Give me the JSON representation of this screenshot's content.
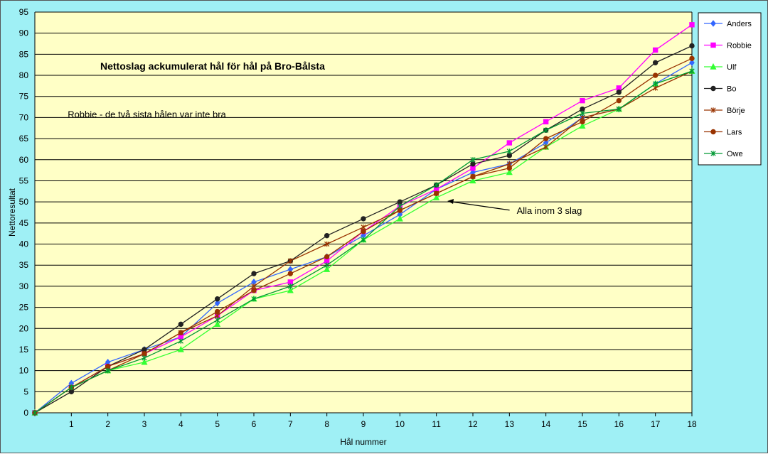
{
  "chart_data": {
    "type": "line",
    "title": "Nettoslag ackumulerat hål för hål på Bro-Bålsta",
    "xlabel": "Hål nummer",
    "ylabel": "Nettoresultat",
    "x": [
      0,
      1,
      2,
      3,
      4,
      5,
      6,
      7,
      8,
      9,
      10,
      11,
      12,
      13,
      14,
      15,
      16,
      17,
      18
    ],
    "xticks": [
      1,
      2,
      3,
      4,
      5,
      6,
      7,
      8,
      9,
      10,
      11,
      12,
      13,
      14,
      15,
      16,
      17,
      18
    ],
    "xlim": [
      0,
      18
    ],
    "ylim": [
      0,
      95
    ],
    "yticks": [
      0,
      5,
      10,
      15,
      20,
      25,
      30,
      35,
      40,
      45,
      50,
      55,
      60,
      65,
      70,
      75,
      80,
      85,
      90,
      95
    ],
    "grid": true,
    "legend_position": "right",
    "plot_background": "#ffffc6",
    "background": "#9ff0f5",
    "annotations": [
      {
        "text": "Robbie - de två sista hålen var inte bra",
        "x": 0.9,
        "y": 70
      },
      {
        "text": "Alla inom 3 slag",
        "x": 13.2,
        "y": 47.2,
        "arrow_to": [
          11.3,
          50.2
        ]
      }
    ],
    "series": [
      {
        "name": "Anders",
        "color": "#3366ff",
        "marker": "diamond",
        "values": [
          0,
          7,
          12,
          15,
          18,
          26,
          31,
          34,
          37,
          42,
          47,
          53,
          57,
          59,
          64,
          70,
          72,
          78,
          83
        ]
      },
      {
        "name": "Robbie",
        "color": "#ff00ff",
        "marker": "square",
        "values": [
          0,
          6,
          11,
          14,
          18,
          23,
          29,
          31,
          36,
          43,
          49,
          53,
          58,
          64,
          69,
          74,
          77,
          86,
          92
        ]
      },
      {
        "name": "Ulf",
        "color": "#33ff33",
        "marker": "triangle",
        "values": [
          0,
          6,
          10,
          12,
          15,
          21,
          27,
          29,
          34,
          41,
          46,
          51,
          55,
          57,
          63,
          68,
          72,
          78,
          81
        ]
      },
      {
        "name": "Bo",
        "color": "#222222",
        "marker": "circle",
        "values": [
          0,
          5,
          11,
          15,
          21,
          27,
          33,
          36,
          42,
          46,
          50,
          54,
          59,
          61,
          67,
          72,
          76,
          83,
          87
        ]
      },
      {
        "name": "Börje",
        "color": "#993300",
        "marker": "asterisk",
        "values": [
          0,
          6,
          10,
          14,
          19,
          23,
          30,
          36,
          40,
          44,
          48,
          52,
          56,
          59,
          63,
          70,
          72,
          77,
          81
        ]
      },
      {
        "name": "Lars",
        "color": "#993300",
        "marker": "circle",
        "values": [
          0,
          6,
          11,
          14,
          19,
          24,
          29,
          33,
          37,
          43,
          48,
          52,
          56,
          58,
          65,
          69,
          74,
          80,
          84
        ]
      },
      {
        "name": "Owe",
        "color": "#009933",
        "marker": "asterisk",
        "values": [
          0,
          6,
          10,
          13,
          17,
          22,
          27,
          30,
          35,
          41,
          49,
          54,
          60,
          62,
          67,
          71,
          72,
          78,
          81
        ]
      }
    ]
  }
}
